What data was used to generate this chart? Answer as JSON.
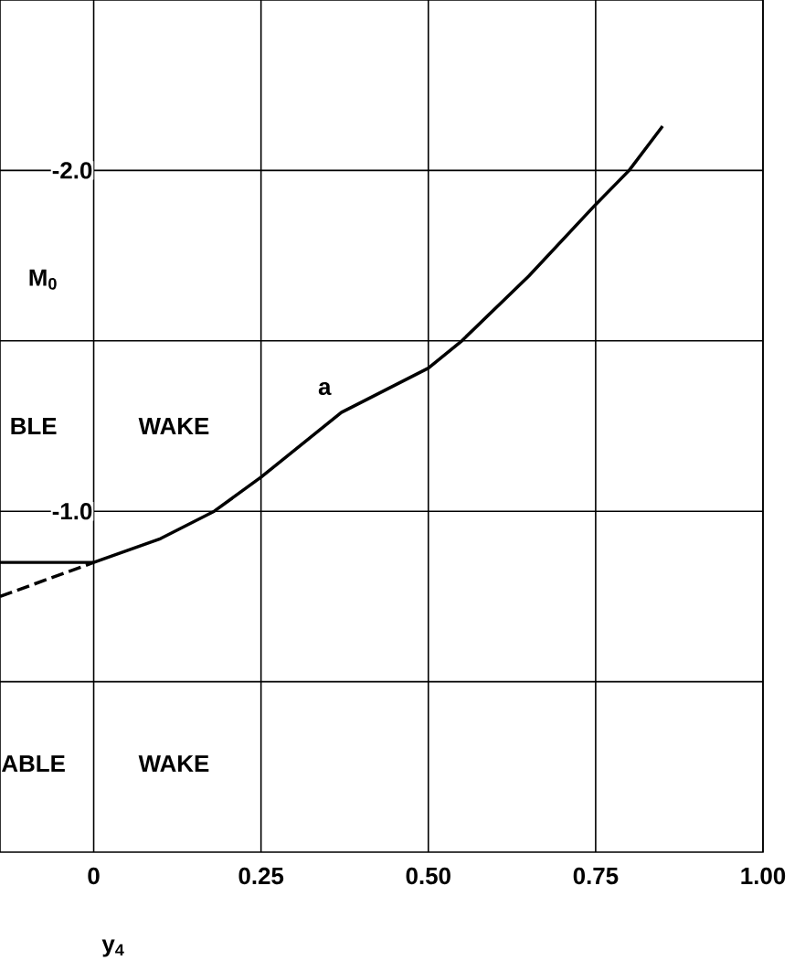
{
  "chart_data": {
    "type": "line",
    "xlabel": "y$_{4}$",
    "ylabel": "M$_{0}$",
    "xlim": [
      -0.14,
      1.0
    ],
    "ylim": [
      0,
      -2.5
    ],
    "xticks": [
      {
        "value": 0,
        "label": "0"
      },
      {
        "value": 0.25,
        "label": "0.25"
      },
      {
        "value": 0.5,
        "label": "0.50"
      },
      {
        "value": 0.75,
        "label": "0.75"
      },
      {
        "value": 1.0,
        "label": "1.00"
      }
    ],
    "yticks": [
      {
        "value": -2.0,
        "label": "-2.0"
      },
      {
        "value": -1.5,
        "label": null
      },
      {
        "value": -1.0,
        "label": "-1.0"
      },
      {
        "value": -0.5,
        "label": null
      }
    ],
    "grid": true,
    "series": [
      {
        "color": "#000000",
        "line_style": "solid",
        "x": [
          -0.14,
          0,
          0.1,
          0.18,
          0.25,
          0.37,
          0.5,
          0.55,
          0.65,
          0.75,
          0.8,
          0.85
        ],
        "values": [
          -0.85,
          -0.85,
          -0.92,
          -1.0,
          -1.1,
          -1.29,
          -1.42,
          -1.5,
          -1.69,
          -1.9,
          -2.0,
          -2.13
        ]
      },
      {
        "color": "#000000",
        "line_style": "dashed",
        "x": [
          -0.14,
          0
        ],
        "values": [
          -0.75,
          -0.85
        ]
      }
    ],
    "annotations": [
      "BLE",
      "WAKE",
      "ABLE",
      "WAKE",
      "a"
    ]
  }
}
